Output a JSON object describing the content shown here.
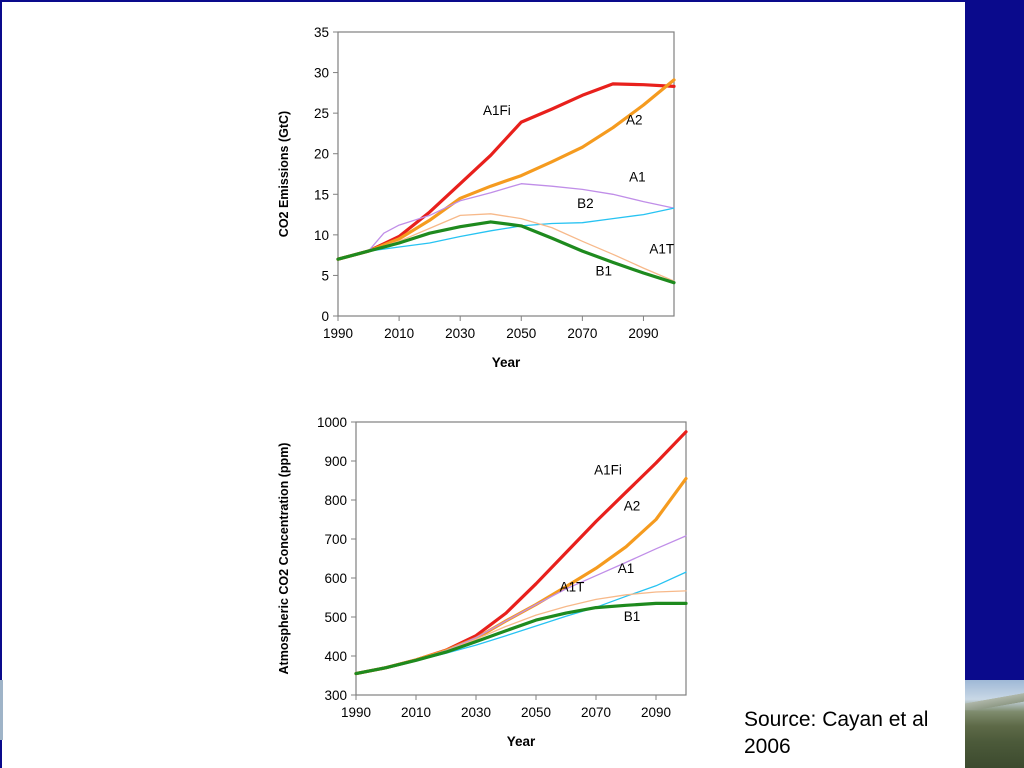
{
  "source": "Source: Cayan et al 2006",
  "colors": {
    "frame": "#0a0a8c",
    "A1Fi": "#e8201c",
    "A2": "#f59b1f",
    "A1": "#c08ee8",
    "B2": "#27c3f2",
    "A1T": "#f7b98a",
    "B1": "#1e8a1e"
  },
  "chart_data": [
    {
      "type": "line",
      "title": "",
      "xlabel": "Year",
      "ylabel": "CO2 Emissions (GtC)",
      "xlim": [
        1990,
        2100
      ],
      "ylim": [
        0,
        35
      ],
      "xticks": [
        1990,
        2010,
        2030,
        2050,
        2070,
        2090
      ],
      "yticks": [
        0,
        5,
        10,
        15,
        20,
        25,
        30,
        35
      ],
      "grid": false,
      "legend": "inline labels",
      "labels": [
        {
          "text": "A1Fi",
          "x": 2042,
          "y": 24.8
        },
        {
          "text": "A2",
          "x": 2087,
          "y": 23.6
        },
        {
          "text": "A1",
          "x": 2088,
          "y": 16.6
        },
        {
          "text": "B2",
          "x": 2071,
          "y": 13.3
        },
        {
          "text": "A1T",
          "x": 2096,
          "y": 7.7
        },
        {
          "text": "B1",
          "x": 2077,
          "y": 5.0
        }
      ],
      "series": [
        {
          "name": "A1Fi",
          "color": "#e8201c",
          "width": 3.2,
          "x": [
            1990,
            2000,
            2010,
            2020,
            2030,
            2040,
            2050,
            2060,
            2070,
            2080,
            2090,
            2100
          ],
          "y": [
            7.0,
            8.0,
            9.8,
            12.8,
            16.3,
            19.8,
            23.9,
            25.5,
            27.2,
            28.6,
            28.5,
            28.3
          ]
        },
        {
          "name": "A2",
          "color": "#f59b1f",
          "width": 3.2,
          "x": [
            1990,
            2000,
            2010,
            2020,
            2030,
            2040,
            2050,
            2060,
            2070,
            2080,
            2090,
            2100
          ],
          "y": [
            7.0,
            8.0,
            9.5,
            11.8,
            14.5,
            16.0,
            17.3,
            19.0,
            20.8,
            23.2,
            26.0,
            29.1
          ]
        },
        {
          "name": "A1",
          "color": "#c08ee8",
          "width": 1.3,
          "x": [
            1990,
            2000,
            2005,
            2010,
            2020,
            2030,
            2040,
            2050,
            2060,
            2070,
            2080,
            2090,
            2100
          ],
          "y": [
            7.0,
            8.0,
            10.2,
            11.2,
            12.4,
            14.2,
            15.2,
            16.3,
            16.0,
            15.6,
            15.0,
            14.1,
            13.3
          ]
        },
        {
          "name": "B2",
          "color": "#27c3f2",
          "width": 1.3,
          "x": [
            1990,
            2000,
            2010,
            2020,
            2030,
            2040,
            2050,
            2060,
            2070,
            2080,
            2090,
            2100
          ],
          "y": [
            7.0,
            8.0,
            8.5,
            9.0,
            9.8,
            10.5,
            11.1,
            11.4,
            11.5,
            12.0,
            12.5,
            13.3
          ]
        },
        {
          "name": "A1T",
          "color": "#f7b98a",
          "width": 1.3,
          "x": [
            1990,
            2000,
            2010,
            2020,
            2030,
            2040,
            2050,
            2060,
            2070,
            2080,
            2090,
            2100
          ],
          "y": [
            7.0,
            8.0,
            9.2,
            10.8,
            12.4,
            12.6,
            12.0,
            10.9,
            9.2,
            7.6,
            5.9,
            4.3
          ]
        },
        {
          "name": "B1",
          "color": "#1e8a1e",
          "width": 3.2,
          "x": [
            1990,
            2000,
            2010,
            2020,
            2030,
            2040,
            2050,
            2060,
            2070,
            2080,
            2090,
            2100
          ],
          "y": [
            7.0,
            8.0,
            9.0,
            10.2,
            11.0,
            11.6,
            11.1,
            9.6,
            8.0,
            6.6,
            5.3,
            4.1
          ]
        }
      ]
    },
    {
      "type": "line",
      "title": "",
      "xlabel": "Year",
      "ylabel": "Atmospheric CO2 Concentration (ppm)",
      "xlim": [
        1990,
        2100
      ],
      "ylim": [
        300,
        1000
      ],
      "xticks": [
        1990,
        2010,
        2030,
        2050,
        2070,
        2090
      ],
      "yticks": [
        300,
        400,
        500,
        600,
        700,
        800,
        900,
        1000
      ],
      "grid": false,
      "legend": "inline labels",
      "labels": [
        {
          "text": "A1Fi",
          "x": 2074,
          "y": 865
        },
        {
          "text": "A2",
          "x": 2082,
          "y": 773
        },
        {
          "text": "A1",
          "x": 2080,
          "y": 613
        },
        {
          "text": "A1T",
          "x": 2062,
          "y": 565
        },
        {
          "text": "B1",
          "x": 2082,
          "y": 490
        }
      ],
      "series": [
        {
          "name": "A1Fi",
          "color": "#e8201c",
          "width": 3.2,
          "x": [
            1990,
            2000,
            2010,
            2020,
            2030,
            2040,
            2050,
            2060,
            2070,
            2080,
            2090,
            2100
          ],
          "y": [
            355,
            370,
            390,
            415,
            452,
            510,
            585,
            665,
            745,
            820,
            895,
            975
          ]
        },
        {
          "name": "A2",
          "color": "#f59b1f",
          "width": 3.2,
          "x": [
            1990,
            2000,
            2010,
            2020,
            2030,
            2040,
            2050,
            2060,
            2070,
            2080,
            2090,
            2100
          ],
          "y": [
            355,
            370,
            390,
            414,
            445,
            490,
            532,
            578,
            625,
            680,
            750,
            855
          ]
        },
        {
          "name": "A1",
          "color": "#c08ee8",
          "width": 1.3,
          "x": [
            1990,
            2000,
            2010,
            2020,
            2030,
            2040,
            2050,
            2060,
            2070,
            2080,
            2090,
            2100
          ],
          "y": [
            355,
            370,
            390,
            414,
            447,
            490,
            532,
            572,
            606,
            640,
            675,
            708
          ]
        },
        {
          "name": "B2",
          "color": "#27c3f2",
          "width": 1.3,
          "x": [
            1990,
            2000,
            2010,
            2020,
            2030,
            2040,
            2050,
            2060,
            2070,
            2080,
            2090,
            2100
          ],
          "y": [
            355,
            370,
            388,
            407,
            428,
            452,
            477,
            502,
            525,
            553,
            580,
            615
          ]
        },
        {
          "name": "A1T",
          "color": "#f7b98a",
          "width": 1.3,
          "x": [
            1990,
            2000,
            2010,
            2020,
            2030,
            2040,
            2050,
            2060,
            2070,
            2080,
            2090,
            2100
          ],
          "y": [
            355,
            370,
            390,
            413,
            443,
            476,
            505,
            527,
            545,
            557,
            564,
            567
          ]
        },
        {
          "name": "B1",
          "color": "#1e8a1e",
          "width": 3.2,
          "x": [
            1990,
            2000,
            2010,
            2020,
            2030,
            2040,
            2050,
            2060,
            2070,
            2080,
            2090,
            2100
          ],
          "y": [
            355,
            370,
            389,
            410,
            437,
            465,
            492,
            510,
            524,
            530,
            535,
            535
          ]
        }
      ]
    }
  ]
}
